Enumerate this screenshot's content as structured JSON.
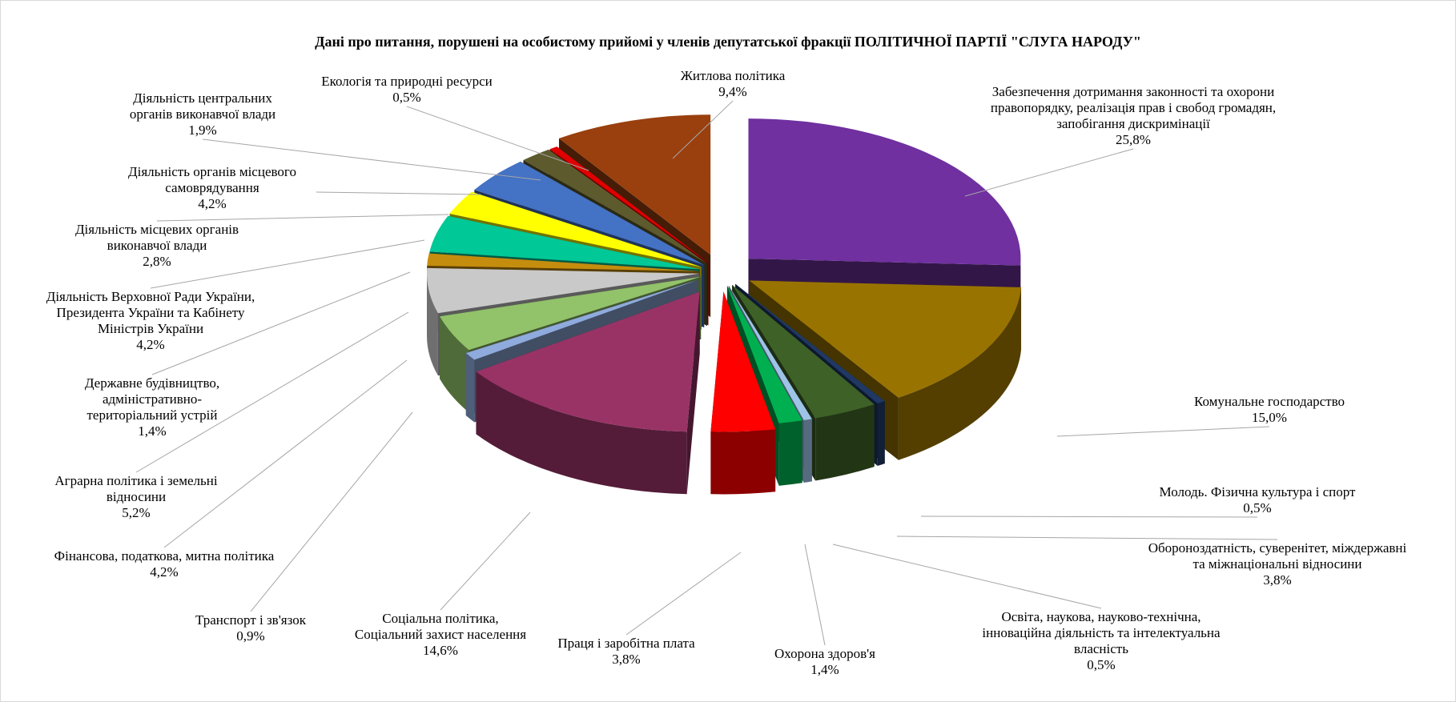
{
  "chart_data": {
    "type": "pie",
    "style": "3d-exploded",
    "title": "Дані про питання, порушені на особистому прийомі у членів депутатської фракції  ПОЛІТИЧНОЇ ПАРТІЇ  \"СЛУГА НАРОДУ\"",
    "legend": "none",
    "slices": [
      {
        "name": "Житлова політика",
        "label_lines": [
          "Житлова політика"
        ],
        "value": 9.4,
        "display": "9,4%",
        "color": "#9a3f0e"
      },
      {
        "name": "Забезпечення дотримання законності та  охорони правопорядку, реалізація  прав і  свобод громадян, запобігання дискримінації",
        "label_lines": [
          "Забезпечення дотримання законності та  охорони",
          "правопорядку, реалізація  прав і  свобод громадян,",
          "запобігання дискримінації"
        ],
        "value": 25.8,
        "display": "25,8%",
        "color": "#7030a0"
      },
      {
        "name": "Комунальне господарство",
        "label_lines": [
          "Комунальне господарство"
        ],
        "value": 15.0,
        "display": "15,0%",
        "color": "#997300"
      },
      {
        "name": "Молодь. Фізична культура і  спорт",
        "label_lines": [
          "Молодь. Фізична культура і  спорт"
        ],
        "value": 0.5,
        "display": "0,5%",
        "color": "#1f3864"
      },
      {
        "name": "Обороноздатність, суверенітет, міждержавні та міжнаціональні  відносини",
        "label_lines": [
          "Обороноздатність, суверенітет, міждержавні",
          "та міжнаціональні  відносини"
        ],
        "value": 3.8,
        "display": "3,8%",
        "color": "#3e6127"
      },
      {
        "name": "Освіта, наукова, науково-технічна, інноваційна діяльність та інтелектуальна власність",
        "label_lines": [
          "Освіта, наукова, науково-технічна,",
          "інноваційна діяльність та інтелектуальна",
          "власність"
        ],
        "value": 0.5,
        "display": "0,5%",
        "color": "#9dc3e6"
      },
      {
        "name": "Охорона здоров'я",
        "label_lines": [
          "Охорона здоров'я"
        ],
        "value": 1.4,
        "display": "1,4%",
        "color": "#00b050"
      },
      {
        "name": "Праця і  заробітна плата",
        "label_lines": [
          "Праця і  заробітна плата"
        ],
        "value": 3.8,
        "display": "3,8%",
        "color": "#ff0000"
      },
      {
        "name": "Соціальна політика, Соціальний захист населення",
        "label_lines": [
          "Соціальна політика,",
          "Соціальний захист населення"
        ],
        "value": 14.6,
        "display": "14,6%",
        "color": "#993366"
      },
      {
        "name": "Транспорт і зв'язок",
        "label_lines": [
          "Транспорт і зв'язок"
        ],
        "value": 0.9,
        "display": "0,9%",
        "color": "#8faadc"
      },
      {
        "name": "Фінансова, податкова, митна політика",
        "label_lines": [
          "Фінансова, податкова, митна політика"
        ],
        "value": 4.2,
        "display": "4,2%",
        "color": "#92c26a"
      },
      {
        "name": "Аграрна політика і земельні відносини",
        "label_lines": [
          "Аграрна політика і земельні",
          "відносини"
        ],
        "value": 5.2,
        "display": "5,2%",
        "color": "#c9c9c9"
      },
      {
        "name": "Державне будівництво, адміністративно-територіальний устрій",
        "label_lines": [
          "Державне будівництво,",
          "адміністративно-",
          "територіальний устрій"
        ],
        "value": 1.4,
        "display": "1,4%",
        "color": "#c58d0e"
      },
      {
        "name": "Діяльність Верховної Ради України, Президента України та Кабінету Міністрів  України",
        "label_lines": [
          "Діяльність Верховної Ради України,",
          "Президента України та Кабінету",
          "Міністрів  України"
        ],
        "value": 4.2,
        "display": "4,2%",
        "color": "#00c896"
      },
      {
        "name": "Діяльність місцевих органів виконавчої влади",
        "label_lines": [
          "Діяльність місцевих органів",
          "виконавчої влади"
        ],
        "value": 2.8,
        "display": "2,8%",
        "color": "#ffff00"
      },
      {
        "name": "Діяльність органів місцевого самоврядування",
        "label_lines": [
          "Діяльність органів місцевого",
          "самоврядування"
        ],
        "value": 4.2,
        "display": "4,2%",
        "color": "#4472c4"
      },
      {
        "name": "Діяльність центральних органів виконавчої влади",
        "label_lines": [
          "Діяльність центральних",
          "органів виконавчої влади"
        ],
        "value": 1.9,
        "display": "1,9%",
        "color": "#5d5a2e"
      },
      {
        "name": "Екологія та природні ресурси",
        "label_lines": [
          "Екологія та природні ресурси"
        ],
        "value": 0.5,
        "display": "0,5%",
        "color": "#e00000"
      }
    ]
  }
}
